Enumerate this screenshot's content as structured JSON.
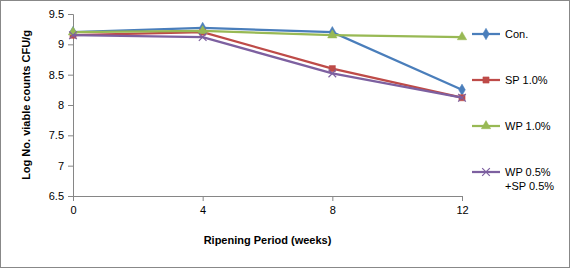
{
  "chart_data": {
    "type": "line",
    "x_label": "Ripening Period (weeks)",
    "y_label": "Log No. viable counts CFU/g",
    "x": [
      0,
      4,
      8,
      12
    ],
    "xlim": [
      0,
      12
    ],
    "xticks": [
      0,
      4,
      8,
      12
    ],
    "ylim": [
      6.5,
      9.5
    ],
    "yticks": [
      6.5,
      7,
      7.5,
      8,
      8.5,
      9,
      9.5
    ],
    "grid": false,
    "legend": "right",
    "series": [
      {
        "name": "Con.",
        "color": "#4a7ebb",
        "marker": "diamond",
        "values": [
          9.2,
          9.27,
          9.2,
          8.25
        ]
      },
      {
        "name": "SP 1.0%",
        "color": "#be4b48",
        "marker": "square",
        "values": [
          9.15,
          9.2,
          8.6,
          8.12
        ]
      },
      {
        "name": "WP 1.0%",
        "color": "#98b954",
        "marker": "triangle",
        "values": [
          9.2,
          9.22,
          9.15,
          9.12
        ]
      },
      {
        "name": "WP 0.5% +SP 0.5%",
        "color": "#7d60a0",
        "marker": "x",
        "values": [
          9.15,
          9.12,
          8.52,
          8.12
        ]
      }
    ]
  }
}
